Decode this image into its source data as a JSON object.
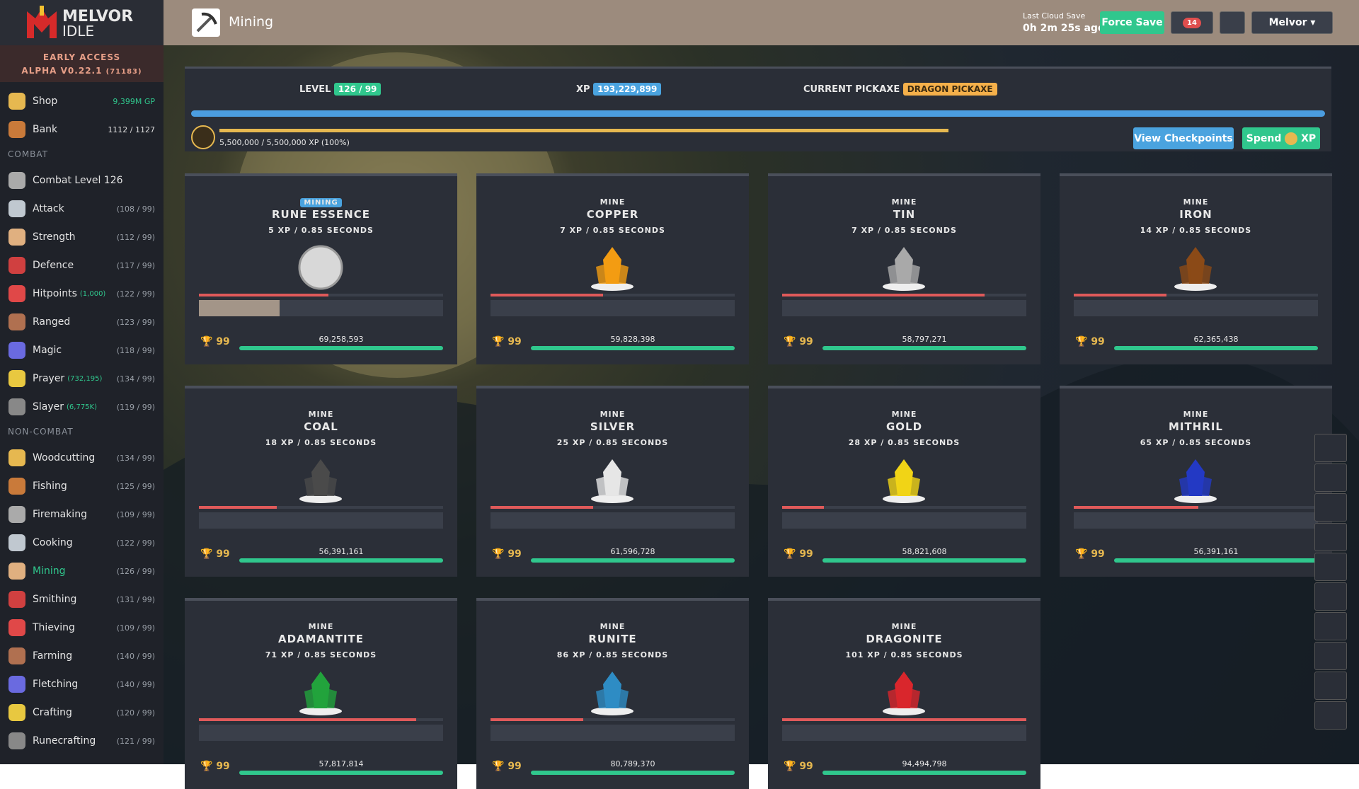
{
  "sidebar": {
    "logo": {
      "title": "MELVOR",
      "subtitle": "IDLE"
    },
    "early_access": "EARLY ACCESS",
    "version": "ALPHA V0.22.1",
    "build": "(71183)",
    "top": [
      {
        "name": "Shop",
        "value": "9,399M GP"
      },
      {
        "name": "Bank",
        "value": "1112 / 1127"
      }
    ],
    "sections": [
      {
        "title": "COMBAT",
        "items": [
          {
            "name": "Combat Level 126"
          },
          {
            "name": "Attack",
            "level": "(108 / 99)"
          },
          {
            "name": "Strength",
            "level": "(112 / 99)"
          },
          {
            "name": "Defence",
            "level": "(117 / 99)"
          },
          {
            "name": "Hitpoints",
            "extra": "(1,000)",
            "level": "(122 / 99)"
          },
          {
            "name": "Ranged",
            "level": "(123 / 99)"
          },
          {
            "name": "Magic",
            "level": "(118 / 99)"
          },
          {
            "name": "Prayer",
            "extra": "(732,195)",
            "level": "(134 / 99)"
          },
          {
            "name": "Slayer",
            "extra": "(6,775K)",
            "level": "(119 / 99)"
          }
        ]
      },
      {
        "title": "NON-COMBAT",
        "items": [
          {
            "name": "Woodcutting",
            "level": "(134 / 99)"
          },
          {
            "name": "Fishing",
            "level": "(125 / 99)"
          },
          {
            "name": "Firemaking",
            "level": "(109 / 99)"
          },
          {
            "name": "Cooking",
            "level": "(122 / 99)"
          },
          {
            "name": "Mining",
            "level": "(126 / 99)",
            "active": true
          },
          {
            "name": "Smithing",
            "level": "(131 / 99)"
          },
          {
            "name": "Thieving",
            "level": "(109 / 99)"
          },
          {
            "name": "Farming",
            "level": "(140 / 99)"
          },
          {
            "name": "Fletching",
            "level": "(140 / 99)"
          },
          {
            "name": "Crafting",
            "level": "(120 / 99)"
          },
          {
            "name": "Runecrafting",
            "level": "(121 / 99)"
          }
        ]
      }
    ]
  },
  "header": {
    "title": "Mining",
    "save_label": "Last Cloud Save",
    "save_time": "0h 2m 25s ago",
    "force_save": "Force Save",
    "notifications": "14",
    "user": "Melvor"
  },
  "skill_panel": {
    "level_label": "LEVEL",
    "level": "126 / 99",
    "xp_label": "XP",
    "xp": "193,229,899",
    "pickaxe_label": "CURRENT PICKAXE",
    "pickaxe": "DRAGON PICKAXE",
    "pool_text": "5,500,000 / 5,500,000 XP (100%)",
    "pool_percent": 100,
    "view_checkpoints": "View Checkpoints",
    "spend": "Spend",
    "spend_unit": "XP"
  },
  "rocks": [
    {
      "badge": "MINING",
      "name": "RUNE ESSENCE",
      "rate": "5 XP / 0.85 SECONDS",
      "mastery": "99",
      "mastery_xp": "69,258,593",
      "hp": 53,
      "progress": 33,
      "color": "#d8d8d8"
    },
    {
      "badge": "MINE",
      "name": "COPPER",
      "rate": "7 XP / 0.85 SECONDS",
      "mastery": "99",
      "mastery_xp": "59,828,398",
      "hp": 46,
      "color": "#f39c12"
    },
    {
      "badge": "MINE",
      "name": "TIN",
      "rate": "7 XP / 0.85 SECONDS",
      "mastery": "99",
      "mastery_xp": "58,797,271",
      "hp": 83,
      "color": "#a9a9a9"
    },
    {
      "badge": "MINE",
      "name": "IRON",
      "rate": "14 XP / 0.85 SECONDS",
      "mastery": "99",
      "mastery_xp": "62,365,438",
      "hp": 38,
      "color": "#8b4a17"
    },
    {
      "badge": "MINE",
      "name": "COAL",
      "rate": "18 XP / 0.85 SECONDS",
      "mastery": "99",
      "mastery_xp": "56,391,161",
      "hp": 32,
      "color": "#4a4a4a"
    },
    {
      "badge": "MINE",
      "name": "SILVER",
      "rate": "25 XP / 0.85 SECONDS",
      "mastery": "99",
      "mastery_xp": "61,596,728",
      "hp": 42,
      "color": "#e6e6e6"
    },
    {
      "badge": "MINE",
      "name": "GOLD",
      "rate": "28 XP / 0.85 SECONDS",
      "mastery": "99",
      "mastery_xp": "58,821,608",
      "hp": 17,
      "color": "#f1d416"
    },
    {
      "badge": "MINE",
      "name": "MITHRIL",
      "rate": "65 XP / 0.85 SECONDS",
      "mastery": "99",
      "mastery_xp": "56,391,161",
      "hp": 51,
      "color": "#2339c4"
    },
    {
      "badge": "MINE",
      "name": "ADAMANTITE",
      "rate": "71 XP / 0.85 SECONDS",
      "mastery": "99",
      "mastery_xp": "57,817,814",
      "hp": 89,
      "color": "#22a33c"
    },
    {
      "badge": "MINE",
      "name": "RUNITE",
      "rate": "86 XP / 0.85 SECONDS",
      "mastery": "99",
      "mastery_xp": "80,789,370",
      "hp": 38,
      "color": "#2e8cc4"
    },
    {
      "badge": "MINE",
      "name": "DRAGONITE",
      "rate": "101 XP / 0.85 SECONDS",
      "mastery": "99",
      "mastery_xp": "94,494,798",
      "hp": 100,
      "color": "#d9262c"
    }
  ]
}
